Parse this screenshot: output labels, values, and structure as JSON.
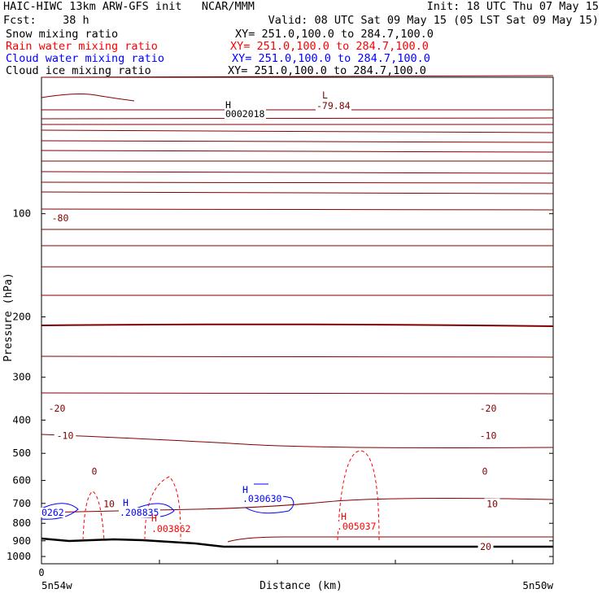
{
  "header": {
    "title": "HAIC-HIWC 13km ARW-GFS init",
    "center": "NCAR/MMM",
    "init": "Init: 18 UTC Thu 07 May 15",
    "fcst_label": "Fcst:",
    "fcst_value": "38 h",
    "valid": "Valid: 08 UTC Sat 09 May 15 (05 LST Sat 09 May 15)"
  },
  "fields": [
    {
      "name": "Snow mixing ratio",
      "xy": "XY= 251.0,100.0 to 284.7,100.0",
      "color": "#000000"
    },
    {
      "name": "Rain water mixing ratio",
      "xy": "XY= 251.0,100.0 to 284.7,100.0",
      "color": "#ff0000"
    },
    {
      "name": "Cloud water mixing ratio",
      "xy": "XY= 251.0,100.0 to 284.7,100.0",
      "color": "#0000ff"
    },
    {
      "name": "Cloud ice mixing ratio",
      "xy": "XY= 251.0,100.0 to 284.7,100.0",
      "color": "#000000"
    }
  ],
  "chart_data": {
    "type": "line",
    "xlabel": "Distance (km)",
    "ylabel": "Pressure (hPa)",
    "x_tick_labels": [
      "0"
    ],
    "x_endpoint_labels": [
      "5n54w",
      "5n50w"
    ],
    "y_ticks": [
      100,
      200,
      300,
      400,
      500,
      600,
      700,
      800,
      900,
      1000
    ],
    "ylim": [
      1050,
      40
    ],
    "y_scale": "log",
    "temperature_contours": [
      {
        "label": "-80",
        "p": 103
      },
      {
        "label": "-20",
        "p": 370
      },
      {
        "label": "-10",
        "p": 444
      },
      {
        "label": "0",
        "p": 565
      },
      {
        "label": "10",
        "p": 703
      },
      {
        "label": "20",
        "p": 935
      }
    ],
    "extrema": [
      {
        "type": "L",
        "value": "-79.84",
        "color": "#800000"
      },
      {
        "type": "H",
        "value": "0002018",
        "color": "#000000"
      },
      {
        "type": "H",
        "value": ".208835",
        "color": "#0000ff"
      },
      {
        "type": "H",
        "value": ".030630",
        "color": "#0000ff"
      },
      {
        "type": "H",
        "value": ".003862",
        "color": "#ff0000"
      },
      {
        "type": "H",
        "value": ".005037",
        "color": "#ff0000"
      },
      {
        "type": "H",
        "value": "0262",
        "color": "#0000ff"
      }
    ],
    "colors": {
      "temperature": "#800000",
      "rain": "#ff0000",
      "cloud": "#0000ff",
      "terrain": "#000000"
    }
  }
}
